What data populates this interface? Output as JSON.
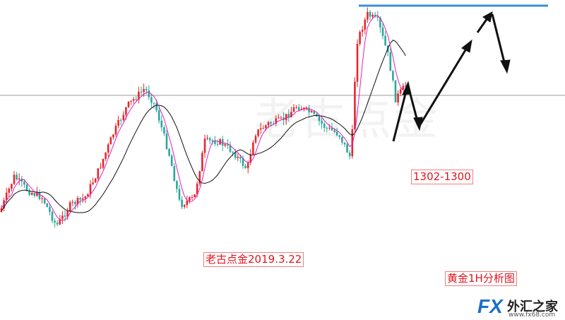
{
  "watermark": "老古点金",
  "annotations": {
    "target": "1302-1300",
    "author_date": "老古点金2019.3.22",
    "caption": "黄金1H分析图"
  },
  "logo": {
    "mark": "FX",
    "name": "外汇之家",
    "url": "www.fx68.com"
  }
}
